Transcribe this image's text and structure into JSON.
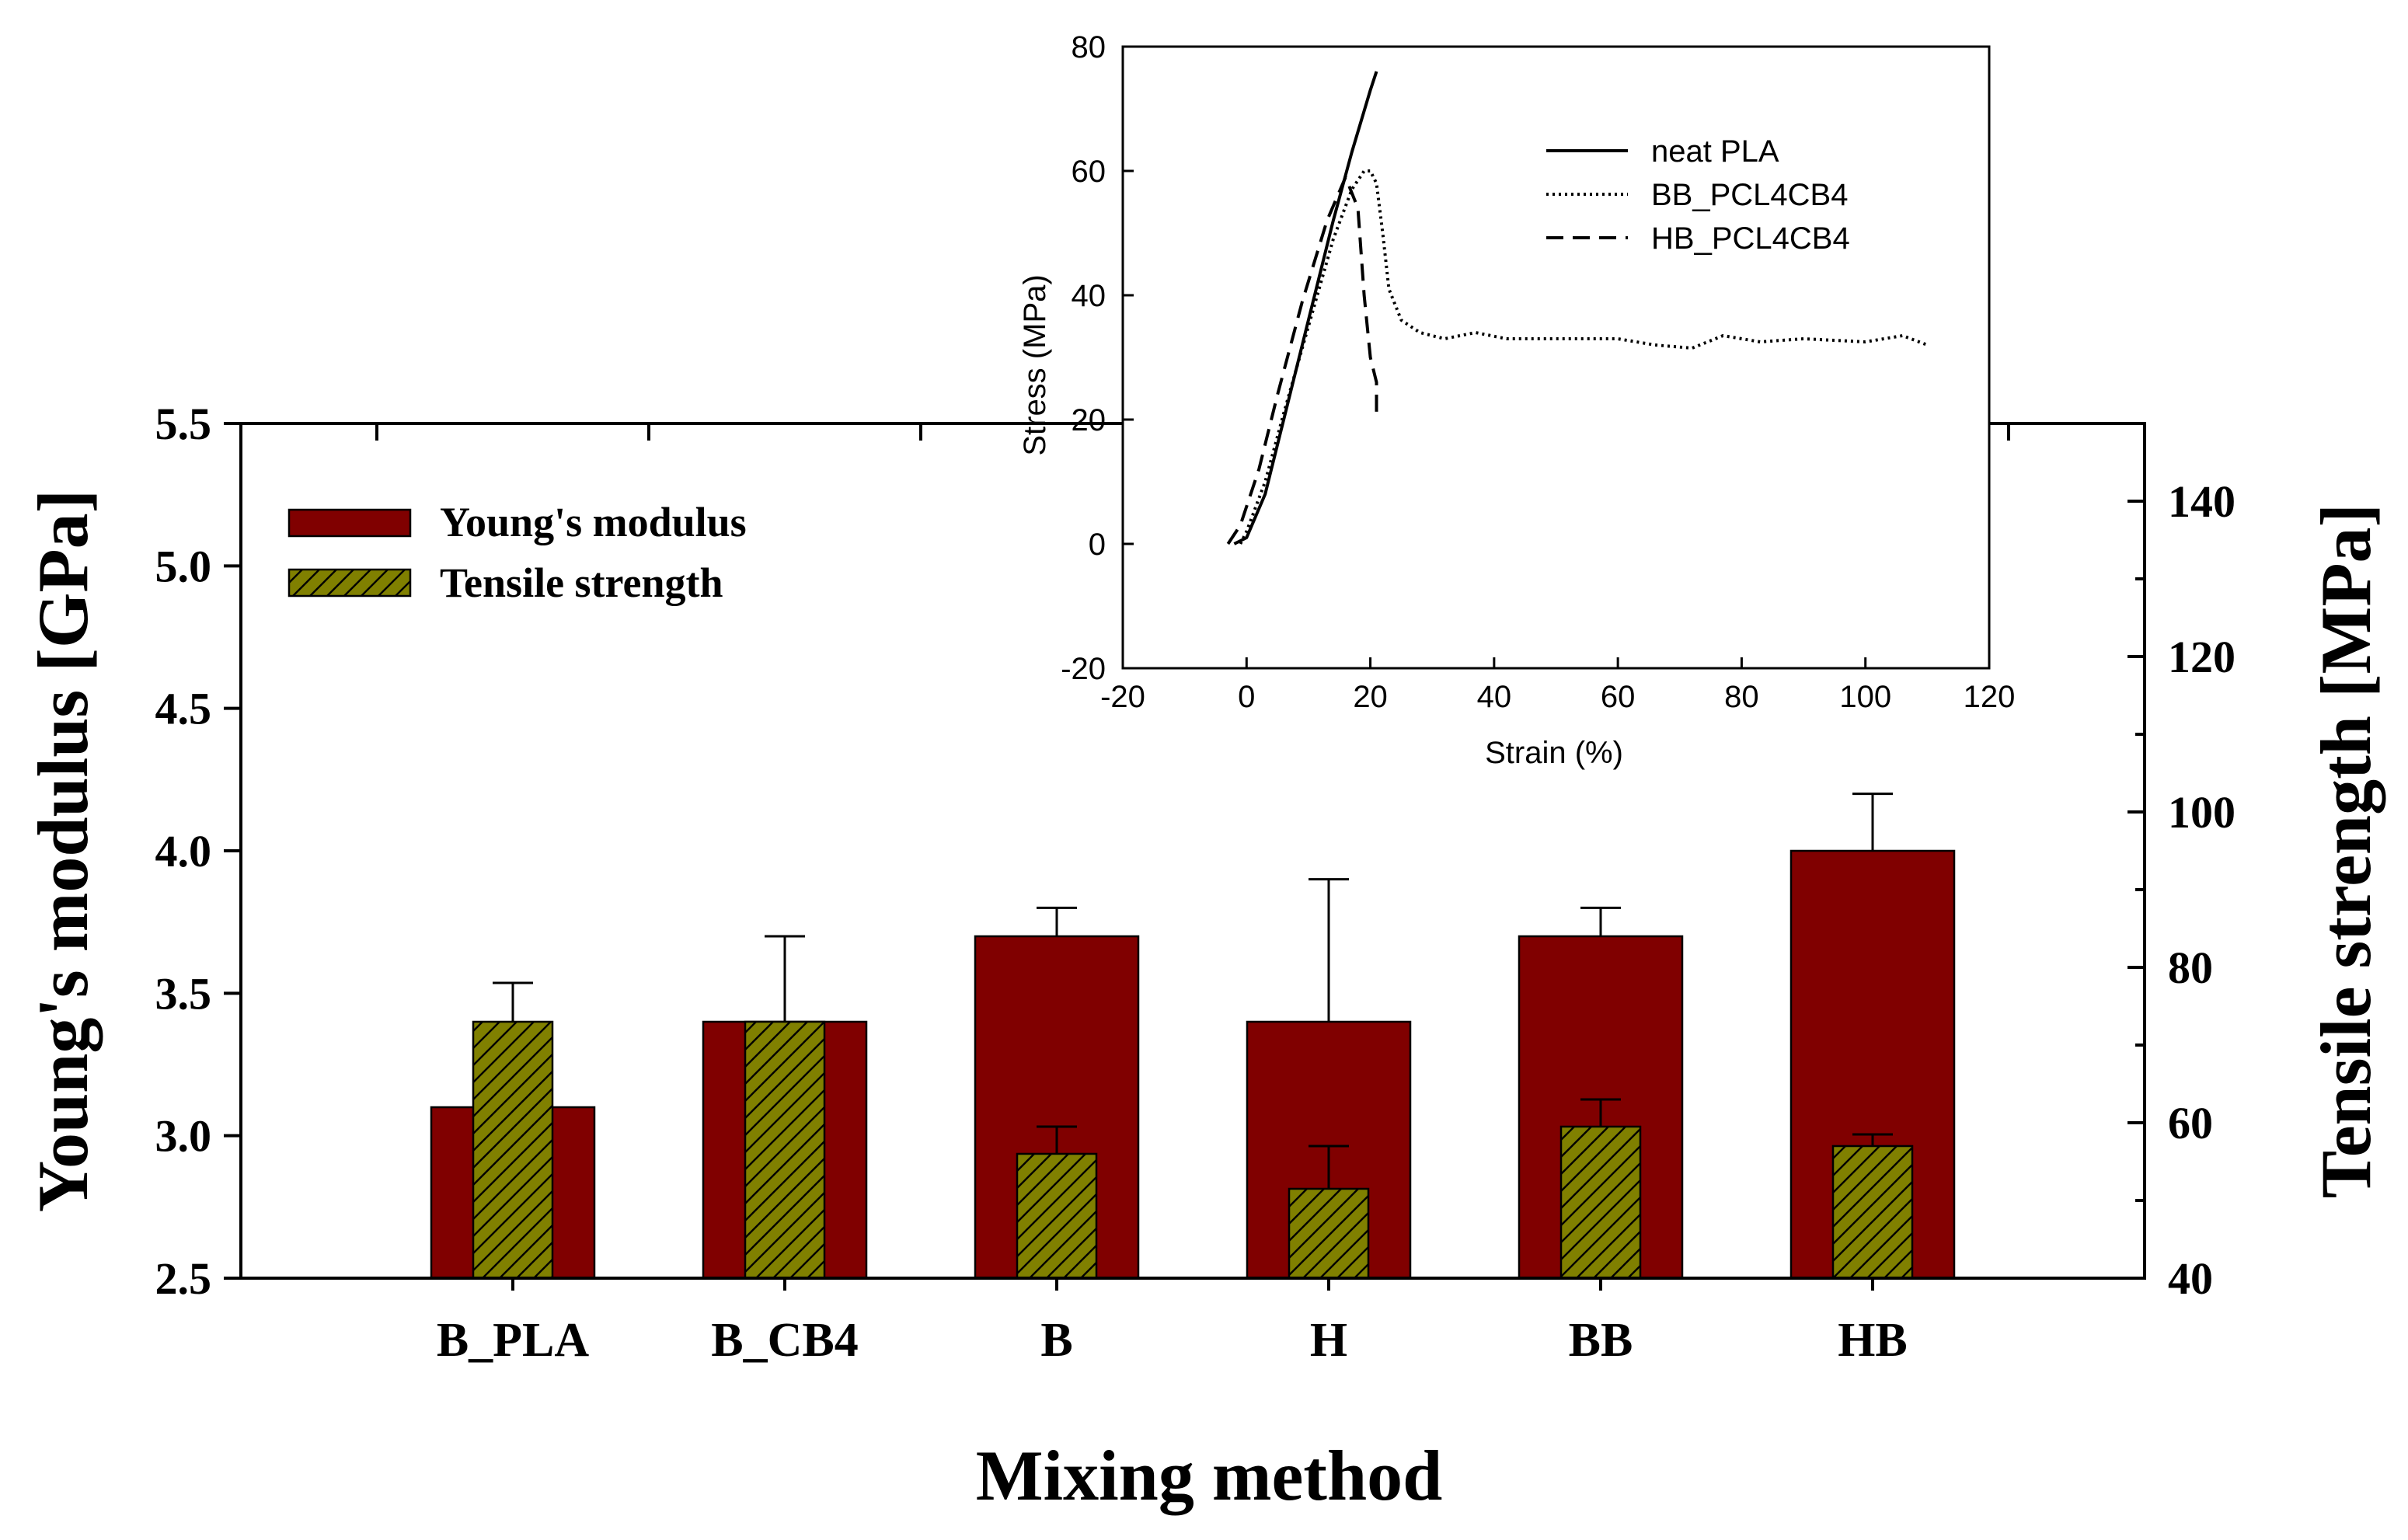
{
  "chart_data": [
    {
      "type": "bar",
      "xlabel": "Mixing method",
      "ylabel": "Young's modulus [GPa]",
      "y2label": "Tensile strength [MPa]",
      "categories": [
        "B_PLA",
        "B_CB4",
        "B",
        "H",
        "BB",
        "HB"
      ],
      "ylim": [
        2.5,
        5.5
      ],
      "y2lim": [
        40,
        150
      ],
      "yticks": [
        "2.5",
        "3.0",
        "3.5",
        "4.0",
        "4.5",
        "5.0",
        "5.5"
      ],
      "y2ticks": [
        "40",
        "60",
        "80",
        "100",
        "120",
        "140"
      ],
      "legend_position": "top-left",
      "grid": false,
      "series": [
        {
          "name": "Young's modulus",
          "axis": "left",
          "color": "#800000",
          "pattern": "solid",
          "values": [
            3.1,
            3.4,
            3.7,
            3.4,
            3.7,
            4.0
          ],
          "errors": [
            null,
            null,
            0.1,
            0.5,
            0.1,
            0.2
          ]
        },
        {
          "name": "Tensile strength",
          "axis": "right",
          "color": "#808000",
          "pattern": "diagonal-hatch",
          "values": [
            73,
            73,
            56,
            51.5,
            59.5,
            57
          ],
          "errors": [
            5,
            11,
            3.5,
            5.5,
            3.5,
            1.5
          ]
        }
      ]
    },
    {
      "type": "line",
      "xlabel": "Strain (%)",
      "ylabel": "Stress (MPa)",
      "xlim": [
        -20,
        120
      ],
      "ylim": [
        -20,
        80
      ],
      "xticks": [
        "-20",
        "0",
        "20",
        "40",
        "60",
        "80",
        "100",
        "120"
      ],
      "yticks": [
        "-20",
        "0",
        "20",
        "40",
        "60",
        "80"
      ],
      "legend_position": "top-right",
      "grid": false,
      "series": [
        {
          "name": "neat PLA",
          "style": "solid",
          "x": [
            -2,
            0,
            3,
            6,
            10,
            14,
            17,
            20,
            21
          ],
          "y": [
            0,
            1,
            8,
            20,
            36,
            52,
            63,
            73,
            76
          ]
        },
        {
          "name": "BB_PCL4CB4",
          "style": "dotted",
          "x": [
            -1,
            0,
            3,
            6,
            10,
            14,
            17,
            19,
            20,
            21,
            22,
            23,
            25,
            28,
            32,
            37,
            42,
            50,
            60,
            66,
            72,
            77,
            83,
            90,
            100,
            106,
            110
          ],
          "y": [
            0,
            2,
            10,
            21,
            35,
            49,
            57,
            60,
            60,
            58,
            50,
            41,
            36,
            34,
            33,
            34,
            33,
            33,
            33,
            32,
            31.5,
            33.5,
            32.5,
            33,
            32.5,
            33.5,
            32
          ]
        },
        {
          "name": "HB_PCL4CB4",
          "style": "dashed",
          "x": [
            -3,
            -1,
            2,
            5,
            9,
            13,
            16,
            18,
            19,
            20,
            21,
            21
          ],
          "y": [
            0,
            3,
            12,
            24,
            39,
            52,
            59,
            54,
            40,
            30,
            26,
            21
          ]
        }
      ]
    }
  ]
}
